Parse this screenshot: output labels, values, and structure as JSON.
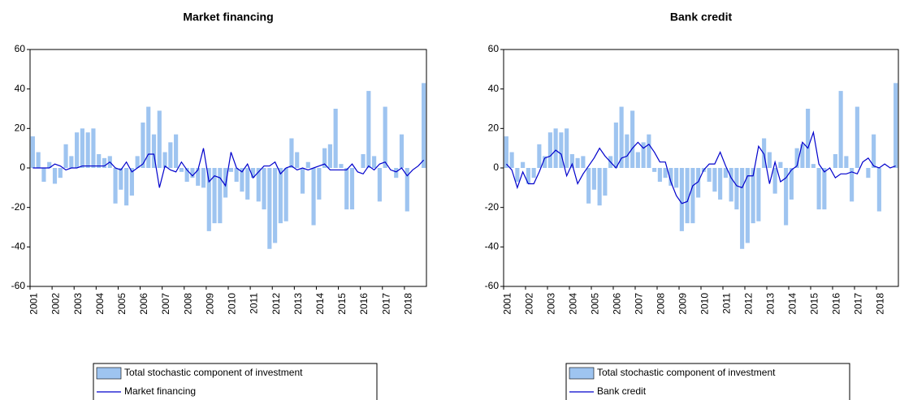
{
  "chart_data": [
    {
      "type": "bar",
      "title": "Market financing",
      "categories": [
        "2001",
        null,
        null,
        null,
        "2002",
        null,
        null,
        null,
        "2003",
        null,
        null,
        null,
        "2004",
        null,
        null,
        null,
        "2005",
        null,
        null,
        null,
        "2006",
        null,
        null,
        null,
        "2007",
        null,
        null,
        null,
        "2008",
        null,
        null,
        null,
        "2009",
        null,
        null,
        null,
        "2010",
        null,
        null,
        null,
        "2011",
        null,
        null,
        null,
        "2012",
        null,
        null,
        null,
        "2013",
        null,
        null,
        null,
        "2014",
        null,
        null,
        null,
        "2015",
        null,
        null,
        null,
        "2016",
        null,
        null,
        null,
        "2017",
        null,
        null,
        null,
        "2018",
        null,
        null,
        null
      ],
      "series": [
        {
          "name": "Total stochastic component of investment",
          "type": "bar",
          "color": "#9ec4f0",
          "values": [
            16,
            8,
            -7,
            3,
            -8,
            -5,
            12,
            6,
            18,
            20,
            18,
            20,
            7,
            5,
            6,
            -18,
            -11,
            -19,
            -14,
            6,
            23,
            31,
            17,
            29,
            8,
            13,
            17,
            -2,
            -7,
            -5,
            -9,
            -10,
            -32,
            -28,
            -28,
            -15,
            -2,
            -7,
            -12,
            -16,
            -5,
            -17,
            -21,
            -41,
            -38,
            -28,
            -27,
            15,
            8,
            -13,
            3,
            -29,
            -16,
            10,
            12,
            30,
            2,
            -21,
            -21,
            0,
            7,
            39,
            6,
            -17,
            31,
            0,
            -5,
            17,
            -22,
            0,
            0,
            43
          ]
        },
        {
          "name": "Market financing",
          "type": "line",
          "color": "#0000cc",
          "values": [
            0,
            0,
            0,
            0,
            2,
            1,
            -1,
            0,
            0,
            1,
            1,
            1,
            1,
            1,
            3,
            0,
            -1,
            3,
            -2,
            0,
            2,
            7,
            7,
            -10,
            1,
            -1,
            -2,
            3,
            -1,
            -4,
            -1,
            10,
            -7,
            -4,
            -5,
            -9,
            8,
            0,
            -2,
            2,
            -5,
            -2,
            1,
            1,
            3,
            -3,
            0,
            1,
            -1,
            0,
            -1,
            0,
            1,
            2,
            -1,
            -1,
            -1,
            -1,
            2,
            -2,
            -3,
            1,
            -1,
            2,
            3,
            -1,
            -2,
            0,
            -4,
            -1,
            1,
            4
          ]
        }
      ],
      "ylim": [
        -60,
        60
      ],
      "yticks": [
        -60,
        -40,
        -20,
        0,
        20,
        40,
        60
      ]
    },
    {
      "type": "bar",
      "title": "Bank credit",
      "categories": [
        "2001",
        null,
        null,
        null,
        "2002",
        null,
        null,
        null,
        "2003",
        null,
        null,
        null,
        "2004",
        null,
        null,
        null,
        "2005",
        null,
        null,
        null,
        "2006",
        null,
        null,
        null,
        "2007",
        null,
        null,
        null,
        "2008",
        null,
        null,
        null,
        "2009",
        null,
        null,
        null,
        "2010",
        null,
        null,
        null,
        "2011",
        null,
        null,
        null,
        "2012",
        null,
        null,
        null,
        "2013",
        null,
        null,
        null,
        "2014",
        null,
        null,
        null,
        "2015",
        null,
        null,
        null,
        "2016",
        null,
        null,
        null,
        "2017",
        null,
        null,
        null,
        "2018",
        null,
        null,
        null
      ],
      "series": [
        {
          "name": "Total stochastic component of investment",
          "type": "bar",
          "color": "#9ec4f0",
          "values": [
            16,
            8,
            -7,
            3,
            -8,
            -5,
            12,
            6,
            18,
            20,
            18,
            20,
            7,
            5,
            6,
            -18,
            -11,
            -19,
            -14,
            6,
            23,
            31,
            17,
            29,
            8,
            13,
            17,
            -2,
            -7,
            -5,
            -9,
            -10,
            -32,
            -28,
            -28,
            -15,
            -2,
            -7,
            -12,
            -16,
            -5,
            -17,
            -21,
            -41,
            -38,
            -28,
            -27,
            15,
            8,
            -13,
            3,
            -29,
            -16,
            10,
            12,
            30,
            2,
            -21,
            -21,
            0,
            7,
            39,
            6,
            -17,
            31,
            0,
            -5,
            17,
            -22,
            0,
            0,
            43
          ]
        },
        {
          "name": "Bank credit",
          "type": "line",
          "color": "#0000cc",
          "values": [
            2,
            -1,
            -10,
            -2,
            -8,
            -8,
            -2,
            5,
            6,
            9,
            7,
            -4,
            2,
            -8,
            -3,
            1,
            5,
            10,
            6,
            3,
            0,
            5,
            6,
            10,
            13,
            10,
            12,
            8,
            3,
            3,
            -7,
            -14,
            -18,
            -17,
            -9,
            -7,
            -1,
            2,
            2,
            8,
            1,
            -5,
            -9,
            -10,
            -4,
            -4,
            11,
            7,
            -8,
            3,
            -7,
            -5,
            -1,
            1,
            13,
            10,
            18,
            2,
            -2,
            0,
            -5,
            -3,
            -3,
            -2,
            -3,
            3,
            5,
            1,
            0,
            2,
            0,
            1
          ]
        }
      ],
      "ylim": [
        -60,
        60
      ],
      "yticks": [
        -60,
        -40,
        -20,
        0,
        20,
        40,
        60
      ]
    }
  ]
}
